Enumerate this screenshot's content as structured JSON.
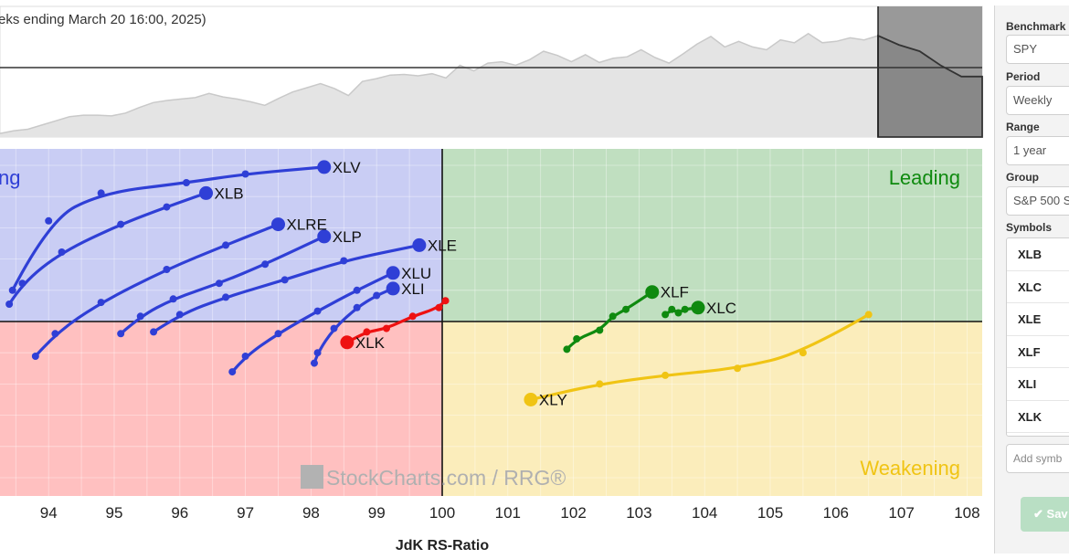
{
  "header": {
    "title_fragment": "eks ending March 20 16:00, 2025)"
  },
  "sidebar": {
    "benchmark_label": "Benchmark S",
    "benchmark_value": "SPY",
    "period_label": "Period",
    "period_value": "Weekly",
    "range_label": "Range",
    "range_value": "1 year",
    "group_label": "Group",
    "group_value": "S&P 500 S",
    "symbols_label": "Symbols",
    "symbols": [
      "XLB",
      "XLC",
      "XLE",
      "XLF",
      "XLI",
      "XLK"
    ],
    "add_symbol_placeholder": "Add symb",
    "save_label": "Sav"
  },
  "colors": {
    "lagging_bg": "#ffc0c0",
    "improving_bg": "#c9cdf4",
    "leading_bg": "#c0dfc0",
    "weakening_bg": "#fbedbb",
    "blue": "#2f3fd6",
    "green": "#0f8a0f",
    "red": "#ee1111",
    "gold": "#f0c414"
  },
  "chart_data": [
    {
      "type": "area",
      "title": "",
      "note": "Benchmark price line with shaded area; right portion darkened",
      "values": [
        0.05,
        0.09,
        0.11,
        0.17,
        0.23,
        0.29,
        0.31,
        0.31,
        0.3,
        0.34,
        0.42,
        0.49,
        0.52,
        0.54,
        0.56,
        0.62,
        0.57,
        0.54,
        0.5,
        0.45,
        0.55,
        0.64,
        0.7,
        0.76,
        0.69,
        0.59,
        0.79,
        0.83,
        0.88,
        0.89,
        0.87,
        0.9,
        0.84,
        1.02,
        0.94,
        1.05,
        1.07,
        1.02,
        1.1,
        1.22,
        1.16,
        1.07,
        1.17,
        1.06,
        1.12,
        1.14,
        1.24,
        1.13,
        1.05,
        1.18,
        1.32,
        1.43,
        1.28,
        1.36,
        1.28,
        1.24,
        1.38,
        1.34,
        1.47,
        1.34,
        1.36,
        1.41,
        1.38,
        1.44
      ],
      "tail_values": [
        1.44,
        1.31,
        1.22,
        1.02,
        0.86,
        0.86
      ]
    },
    {
      "type": "scatter",
      "title": "",
      "xlabel": "JdK RS-Ratio",
      "ylabel": "",
      "xlim": [
        93.3,
        108.2
      ],
      "x_ticks": [
        94,
        95,
        96,
        97,
        98,
        99,
        100,
        101,
        102,
        103,
        104,
        105,
        106,
        107,
        108
      ],
      "ylim": [
        -1,
        1
      ],
      "center": [
        100,
        0
      ],
      "quadrants": {
        "improving": "ng",
        "leading": "Leading",
        "weakening": "Weakening",
        "lagging": ""
      },
      "watermark": "StockCharts.com / RRG®",
      "series": [
        {
          "name": "XLV",
          "color": "blue",
          "points": [
            [
              93.45,
              0.18
            ],
            [
              94,
              0.58
            ],
            [
              94.8,
              0.74
            ],
            [
              96.1,
              0.8
            ],
            [
              97,
              0.85
            ],
            [
              98.2,
              0.89
            ]
          ]
        },
        {
          "name": "XLB",
          "color": "blue",
          "points": [
            [
              93.4,
              0.1
            ],
            [
              93.6,
              0.22
            ],
            [
              94.2,
              0.4
            ],
            [
              95.1,
              0.56
            ],
            [
              95.8,
              0.66
            ],
            [
              96.4,
              0.74
            ]
          ]
        },
        {
          "name": "XLRE",
          "color": "blue",
          "points": [
            [
              93.8,
              -0.2
            ],
            [
              94.1,
              -0.07
            ],
            [
              94.8,
              0.11
            ],
            [
              95.8,
              0.3
            ],
            [
              96.7,
              0.44
            ],
            [
              97.5,
              0.56
            ]
          ]
        },
        {
          "name": "XLP",
          "color": "blue",
          "points": [
            [
              95.1,
              -0.07
            ],
            [
              95.4,
              0.03
            ],
            [
              95.9,
              0.13
            ],
            [
              96.6,
              0.22
            ],
            [
              97.3,
              0.33
            ],
            [
              98.2,
              0.49
            ]
          ]
        },
        {
          "name": "XLE",
          "color": "blue",
          "points": [
            [
              95.6,
              -0.06
            ],
            [
              96,
              0.04
            ],
            [
              96.7,
              0.14
            ],
            [
              97.6,
              0.24
            ],
            [
              98.5,
              0.35
            ],
            [
              99.65,
              0.44
            ]
          ]
        },
        {
          "name": "XLU",
          "color": "blue",
          "points": [
            [
              96.8,
              -0.29
            ],
            [
              97,
              -0.2
            ],
            [
              97.5,
              -0.07
            ],
            [
              98.1,
              0.06
            ],
            [
              98.7,
              0.18
            ],
            [
              99.25,
              0.28
            ]
          ]
        },
        {
          "name": "XLI",
          "color": "blue",
          "points": [
            [
              98.05,
              -0.24
            ],
            [
              98.1,
              -0.18
            ],
            [
              98.35,
              -0.04
            ],
            [
              98.7,
              0.08
            ],
            [
              99.0,
              0.15
            ],
            [
              99.25,
              0.19
            ]
          ]
        },
        {
          "name": "XLK",
          "color": "red",
          "points": [
            [
              100.05,
              0.12
            ],
            [
              99.95,
              0.08
            ],
            [
              99.55,
              0.03
            ],
            [
              99.15,
              -0.04
            ],
            [
              98.85,
              -0.06
            ],
            [
              98.55,
              -0.12
            ]
          ]
        },
        {
          "name": "XLF",
          "color": "green",
          "points": [
            [
              101.9,
              -0.16
            ],
            [
              102.05,
              -0.1
            ],
            [
              102.4,
              -0.05
            ],
            [
              102.6,
              0.03
            ],
            [
              102.8,
              0.07
            ],
            [
              103.2,
              0.17
            ]
          ]
        },
        {
          "name": "XLC",
          "color": "green",
          "points": [
            [
              103.4,
              0.04
            ],
            [
              103.5,
              0.07
            ],
            [
              103.6,
              0.05
            ],
            [
              103.7,
              0.07
            ],
            [
              103.9,
              0.08
            ]
          ]
        },
        {
          "name": "XLY",
          "color": "gold",
          "points": [
            [
              106.5,
              0.04
            ],
            [
              105.5,
              -0.18
            ],
            [
              104.5,
              -0.27
            ],
            [
              103.4,
              -0.31
            ],
            [
              102.4,
              -0.36
            ],
            [
              101.35,
              -0.45
            ]
          ]
        }
      ]
    }
  ]
}
